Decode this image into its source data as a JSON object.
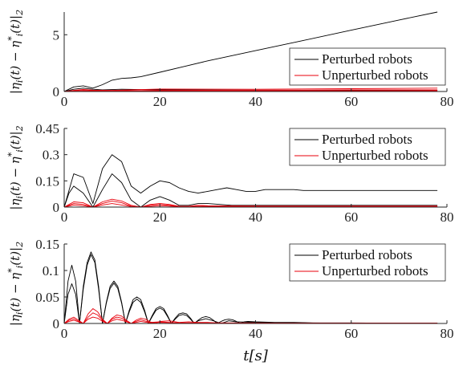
{
  "chart_data": [
    {
      "type": "line",
      "ylabel": "|η_i(t) − η*_i(t)|₂",
      "xlim": [
        0,
        80
      ],
      "ylim": [
        0,
        7
      ],
      "xticks": [
        "0",
        "20",
        "40",
        "60",
        "80"
      ],
      "yticks": [
        {
          "v": 0,
          "label": "0"
        },
        {
          "v": 5,
          "label": "5"
        }
      ],
      "legend": {
        "position": "right",
        "entries": [
          "Perturbed robots",
          "Unperturbed robots"
        ]
      },
      "series": [
        {
          "name": "Perturbed robots",
          "color": "#000000",
          "x": [
            0,
            2,
            4,
            6,
            8,
            10,
            12,
            14,
            16,
            20,
            25,
            30,
            40,
            50,
            60,
            70,
            78
          ],
          "y": [
            0,
            0.4,
            0.5,
            0.3,
            0.6,
            1.0,
            1.15,
            1.2,
            1.3,
            1.7,
            2.2,
            2.7,
            3.6,
            4.5,
            5.4,
            6.3,
            7.0
          ]
        },
        {
          "name": "Perturbed robots",
          "color": "#000000",
          "x": [
            0,
            2,
            4,
            6,
            8,
            12,
            20,
            40,
            60,
            78
          ],
          "y": [
            0,
            0.2,
            0.3,
            0.2,
            0.15,
            0.2,
            0.15,
            0.12,
            0.1,
            0.1
          ]
        },
        {
          "name": "Unperturbed robots",
          "color": "#e8000b",
          "x": [
            0,
            2,
            4,
            6,
            10,
            20,
            40,
            60,
            78
          ],
          "y": [
            0,
            0.1,
            0.18,
            0.12,
            0.1,
            0.22,
            0.2,
            0.25,
            0.3
          ]
        },
        {
          "name": "Unperturbed robots",
          "color": "#e8000b",
          "x": [
            0,
            2,
            4,
            6,
            10,
            20,
            40,
            60,
            78
          ],
          "y": [
            0,
            0.06,
            0.1,
            0.08,
            0.06,
            0.1,
            0.12,
            0.14,
            0.15
          ]
        },
        {
          "name": "Unperturbed robots",
          "color": "#e8000b",
          "x": [
            0,
            3,
            6,
            10,
            20,
            40,
            60,
            78
          ],
          "y": [
            0,
            0.03,
            0.05,
            0.04,
            0.05,
            0.06,
            0.06,
            0.07
          ]
        }
      ]
    },
    {
      "type": "line",
      "ylabel": "|η_i(t) − η*_i(t)|₂",
      "xlim": [
        0,
        80
      ],
      "ylim": [
        0,
        0.45
      ],
      "xticks": [
        "0",
        "20",
        "40",
        "60",
        "80"
      ],
      "yticks": [
        {
          "v": 0,
          "label": "0"
        },
        {
          "v": 0.15,
          "label": "0.15"
        },
        {
          "v": 0.3,
          "label": "0.3"
        },
        {
          "v": 0.45,
          "label": "0.45"
        }
      ],
      "legend": {
        "position": "right",
        "entries": [
          "Perturbed robots",
          "Unperturbed robots"
        ]
      },
      "series": [
        {
          "name": "Perturbed robots",
          "color": "#000000",
          "x": [
            0,
            2,
            4,
            6,
            8,
            10,
            12,
            14,
            16,
            18,
            20,
            22,
            24,
            26,
            28,
            30,
            32,
            34,
            36,
            38,
            40,
            42,
            44,
            46,
            48,
            50,
            55,
            60,
            65,
            70,
            78
          ],
          "y": [
            0,
            0.19,
            0.17,
            0.02,
            0.22,
            0.3,
            0.26,
            0.12,
            0.08,
            0.12,
            0.15,
            0.14,
            0.11,
            0.09,
            0.08,
            0.09,
            0.1,
            0.11,
            0.1,
            0.09,
            0.09,
            0.1,
            0.1,
            0.1,
            0.1,
            0.095,
            0.095,
            0.095,
            0.095,
            0.095,
            0.095
          ]
        },
        {
          "name": "Perturbed robots",
          "color": "#000000",
          "x": [
            0,
            1,
            2,
            4,
            6,
            8,
            10,
            12,
            14,
            16,
            18,
            20,
            22,
            24,
            26,
            28,
            30,
            35,
            40,
            50,
            60,
            78
          ],
          "y": [
            0,
            0.08,
            0.12,
            0.08,
            0.0,
            0.1,
            0.19,
            0.14,
            0.04,
            0.0,
            0.04,
            0.06,
            0.04,
            0.01,
            0.01,
            0.02,
            0.02,
            0.01,
            0.01,
            0.01,
            0.01,
            0.01
          ]
        },
        {
          "name": "Unperturbed robots",
          "color": "#e8000b",
          "x": [
            0,
            2,
            4,
            6,
            8,
            10,
            12,
            14,
            16,
            18,
            20,
            22,
            24,
            26,
            28,
            30,
            40,
            50,
            60,
            78
          ],
          "y": [
            0,
            0.03,
            0.025,
            0.0,
            0.03,
            0.045,
            0.035,
            0.01,
            0.0,
            0.015,
            0.02,
            0.015,
            0.005,
            0.005,
            0.01,
            0.008,
            0.006,
            0.006,
            0.006,
            0.006
          ]
        },
        {
          "name": "Unperturbed robots",
          "color": "#e8000b",
          "x": [
            0,
            2,
            4,
            6,
            8,
            10,
            12,
            14,
            16,
            18,
            20,
            22,
            24,
            28,
            32,
            40,
            60,
            78
          ],
          "y": [
            0,
            0.02,
            0.015,
            0.0,
            0.02,
            0.035,
            0.025,
            0.005,
            0.0,
            0.01,
            0.015,
            0.01,
            0.004,
            0.004,
            0.004,
            0.004,
            0.004,
            0.004
          ]
        },
        {
          "name": "Unperturbed robots",
          "color": "#e8000b",
          "x": [
            0,
            2,
            4,
            6,
            8,
            10,
            12,
            14,
            16,
            20,
            24,
            30,
            40,
            60,
            78
          ],
          "y": [
            0,
            0.012,
            0.008,
            0.0,
            0.012,
            0.02,
            0.012,
            0.003,
            0.0,
            0.008,
            0.003,
            0.003,
            0.002,
            0.002,
            0.002
          ]
        }
      ]
    },
    {
      "type": "line",
      "ylabel": "|η_i(t) − η*_i(t)|₂",
      "xlabel": "t[s]",
      "xlim": [
        0,
        80
      ],
      "ylim": [
        0,
        0.15
      ],
      "xticks": [
        "0",
        "20",
        "40",
        "60",
        "80"
      ],
      "yticks": [
        {
          "v": 0,
          "label": "0"
        },
        {
          "v": 0.05,
          "label": "0.05"
        },
        {
          "v": 0.1,
          "label": "0.1"
        },
        {
          "v": 0.15,
          "label": "0.15"
        }
      ],
      "legend": {
        "position": "right",
        "entries": [
          "Perturbed robots",
          "Unperturbed robots"
        ]
      },
      "series": [
        {
          "name": "Perturbed robots",
          "color": "#000000",
          "x": [
            0,
            0.8,
            1.6,
            2.4,
            3.2,
            4.0,
            4.8,
            5.6,
            6.4,
            7.2,
            8.0,
            8.8,
            9.6,
            10.4,
            11.2,
            12.0,
            12.8,
            13.6,
            14.4,
            15.2,
            16.0,
            16.8,
            17.6,
            18.4,
            19.2,
            20.0,
            20.8,
            21.6,
            22.4,
            23.2,
            24.0,
            24.8,
            25.6,
            26.4,
            27.2,
            28.0,
            28.8,
            29.6,
            30.4,
            31.2,
            32.0,
            32.8,
            33.6,
            34.4,
            35.2,
            36.0,
            36.8,
            37.6,
            38.4,
            40,
            44,
            48,
            52,
            56,
            60,
            70,
            78
          ],
          "y": [
            0,
            0.08,
            0.11,
            0.08,
            0.0,
            0.07,
            0.115,
            0.135,
            0.12,
            0.07,
            0.0,
            0.04,
            0.07,
            0.08,
            0.07,
            0.04,
            0.0,
            0.025,
            0.045,
            0.05,
            0.045,
            0.025,
            0.0,
            0.015,
            0.028,
            0.032,
            0.028,
            0.015,
            0.0,
            0.01,
            0.018,
            0.02,
            0.018,
            0.01,
            0.0,
            0.006,
            0.011,
            0.013,
            0.011,
            0.006,
            0.0,
            0.004,
            0.007,
            0.008,
            0.007,
            0.004,
            0.0,
            0.003,
            0.004,
            0.003,
            0.002,
            0.002,
            0.001,
            0.001,
            0.001,
            0.0005,
            0.0005
          ]
        },
        {
          "name": "Perturbed robots",
          "color": "#000000",
          "x": [
            0,
            0.8,
            1.6,
            2.4,
            3.2,
            4.0,
            4.8,
            5.6,
            6.4,
            7.2,
            8.0,
            8.8,
            9.6,
            10.4,
            11.2,
            12.0,
            12.8,
            13.6,
            14.4,
            15.2,
            16.0,
            16.8,
            17.6,
            18.4,
            19.2,
            20.0,
            20.8,
            21.6,
            22.4,
            23.2,
            24.0,
            24.8,
            25.6,
            26.4,
            27.2,
            28.0,
            29.6,
            31.2,
            32.8,
            34.4,
            36.0,
            40,
            50,
            60,
            78
          ],
          "y": [
            0,
            0.055,
            0.075,
            0.055,
            0.0,
            0.065,
            0.11,
            0.13,
            0.115,
            0.065,
            0.0,
            0.038,
            0.066,
            0.076,
            0.066,
            0.038,
            0.0,
            0.022,
            0.04,
            0.046,
            0.04,
            0.022,
            0.0,
            0.013,
            0.025,
            0.029,
            0.025,
            0.013,
            0.0,
            0.008,
            0.015,
            0.017,
            0.015,
            0.008,
            0.0,
            0.005,
            0.009,
            0.005,
            0.0,
            0.005,
            0.003,
            0.002,
            0.001,
            0.0005,
            0.0005
          ]
        },
        {
          "name": "Unperturbed robots",
          "color": "#e8000b",
          "x": [
            0,
            1,
            2,
            3,
            4,
            5,
            6,
            7,
            8,
            9,
            10,
            11,
            12,
            13,
            14,
            15,
            16,
            17,
            18,
            19,
            20,
            22,
            24,
            26,
            28,
            30,
            32,
            34,
            36,
            40,
            50,
            60,
            78
          ],
          "y": [
            0,
            0.008,
            0.012,
            0.006,
            0.0,
            0.018,
            0.028,
            0.022,
            0.008,
            0.0,
            0.01,
            0.016,
            0.014,
            0.006,
            0.0,
            0.006,
            0.01,
            0.008,
            0.003,
            0.0,
            0.004,
            0.005,
            0.002,
            0.003,
            0.002,
            0.002,
            0.001,
            0.001,
            0.001,
            0.001,
            0.0005,
            0.0005,
            0.0005
          ]
        },
        {
          "name": "Unperturbed robots",
          "color": "#e8000b",
          "x": [
            0,
            1,
            2,
            3,
            4,
            5,
            6,
            7,
            8,
            9,
            10,
            11,
            12,
            13,
            14,
            15,
            16,
            18,
            20,
            22,
            24,
            28,
            32,
            40,
            60,
            78
          ],
          "y": [
            0,
            0.006,
            0.009,
            0.004,
            0.0,
            0.012,
            0.02,
            0.016,
            0.006,
            0.0,
            0.008,
            0.012,
            0.01,
            0.004,
            0.0,
            0.004,
            0.007,
            0.002,
            0.003,
            0.002,
            0.001,
            0.001,
            0.001,
            0.0005,
            0.0005,
            0.0005
          ]
        },
        {
          "name": "Unperturbed robots",
          "color": "#e8000b",
          "x": [
            0,
            1,
            2,
            3,
            4,
            5,
            6,
            7,
            8,
            9,
            10,
            11,
            12,
            14,
            16,
            18,
            20,
            24,
            30,
            40,
            60,
            78
          ],
          "y": [
            0,
            0.004,
            0.006,
            0.003,
            0.0,
            0.008,
            0.012,
            0.01,
            0.004,
            0.0,
            0.005,
            0.008,
            0.006,
            0.0,
            0.004,
            0.001,
            0.002,
            0.001,
            0.0005,
            0.0005,
            0.0005,
            0.0005
          ]
        }
      ]
    }
  ]
}
